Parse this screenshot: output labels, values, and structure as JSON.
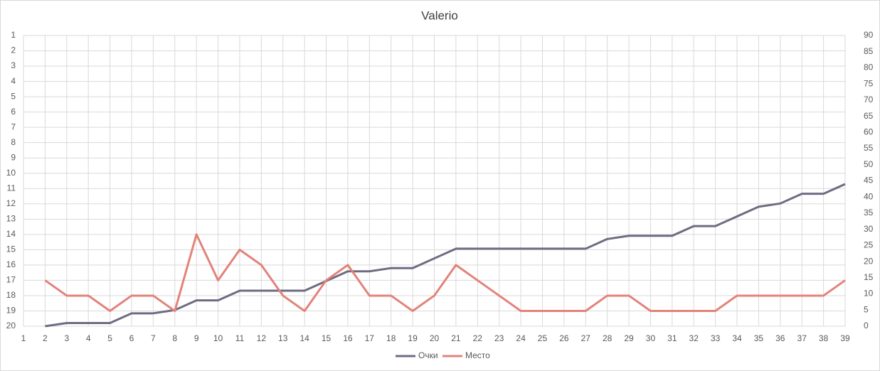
{
  "chart_data": {
    "type": "line",
    "title": "Valerio",
    "x": [
      2,
      3,
      4,
      5,
      6,
      7,
      8,
      9,
      10,
      11,
      12,
      13,
      14,
      15,
      16,
      17,
      18,
      19,
      20,
      21,
      22,
      23,
      24,
      25,
      26,
      27,
      28,
      29,
      30,
      31,
      32,
      33,
      34,
      35,
      36,
      37,
      38,
      39
    ],
    "xlim": [
      1,
      39
    ],
    "xticks": [
      1,
      2,
      3,
      4,
      5,
      6,
      7,
      8,
      9,
      10,
      11,
      12,
      13,
      14,
      15,
      16,
      17,
      18,
      19,
      20,
      21,
      22,
      23,
      24,
      25,
      26,
      27,
      28,
      29,
      30,
      31,
      32,
      33,
      34,
      35,
      36,
      37,
      38,
      39
    ],
    "ylim": [
      20,
      1
    ],
    "yticks": [
      1,
      2,
      3,
      4,
      5,
      6,
      7,
      8,
      9,
      10,
      11,
      12,
      13,
      14,
      15,
      16,
      17,
      18,
      19,
      20
    ],
    "y2lim": [
      0,
      90
    ],
    "y2ticks": [
      0,
      5,
      10,
      15,
      20,
      25,
      30,
      35,
      40,
      45,
      50,
      55,
      60,
      65,
      70,
      75,
      80,
      85,
      90
    ],
    "grid": true,
    "legend": "bottom",
    "series": [
      {
        "name": "Очки",
        "color": "#6f6b82",
        "axis": "y2",
        "values": [
          0,
          1,
          1,
          1,
          4,
          4,
          5,
          8,
          8,
          11,
          11,
          11,
          11,
          14,
          17,
          17,
          18,
          18,
          21,
          24,
          24,
          24,
          24,
          24,
          24,
          24,
          27,
          28,
          28,
          28,
          31,
          31,
          34,
          37,
          38,
          41,
          41,
          44
        ]
      },
      {
        "name": "Место",
        "color": "#e2837a",
        "values": [
          17,
          18,
          18,
          19,
          18,
          18,
          19,
          14,
          17,
          15,
          16,
          18,
          19,
          17,
          16,
          18,
          18,
          19,
          18,
          16,
          17,
          18,
          19,
          19,
          19,
          19,
          18,
          18,
          19,
          19,
          19,
          19,
          18,
          18,
          18,
          18,
          18,
          17
        ]
      }
    ]
  }
}
